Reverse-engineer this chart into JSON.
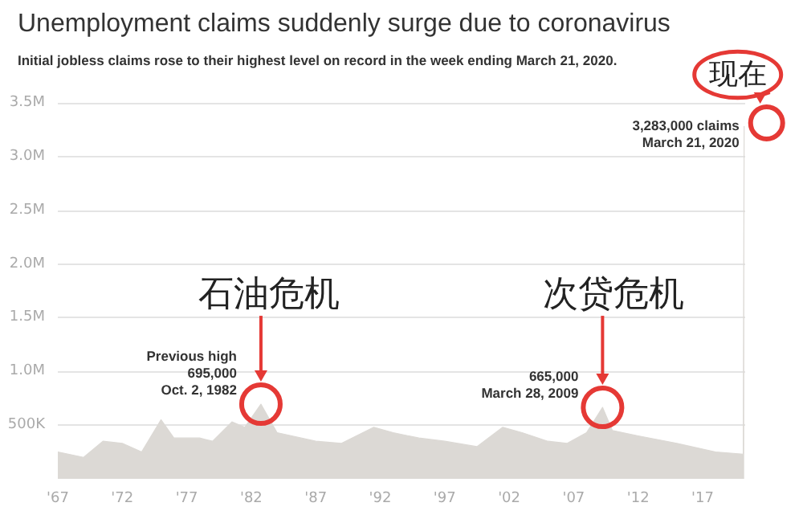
{
  "chart_data": {
    "type": "area",
    "title": "Unemployment claims suddenly surge due to coronavirus",
    "subtitle": "Initial jobless claims rose to their highest level on record in the week ending March 21, 2020.",
    "x": [
      1967,
      1969,
      1970.5,
      1972,
      1973.5,
      1975,
      1976,
      1978,
      1979,
      1980.5,
      1981.5,
      1982.75,
      1984,
      1987,
      1989,
      1991.5,
      1993,
      1995,
      1997,
      1999.5,
      2001.5,
      2003,
      2005,
      2006.5,
      2008,
      2009.24,
      2010,
      2012,
      2015,
      2018,
      2020.15,
      2020.22
    ],
    "values": [
      250000,
      200000,
      350000,
      330000,
      250000,
      550000,
      380000,
      380000,
      350000,
      530000,
      480000,
      695000,
      430000,
      350000,
      330000,
      480000,
      430000,
      380000,
      350000,
      300000,
      480000,
      430000,
      350000,
      330000,
      430000,
      665000,
      450000,
      400000,
      330000,
      250000,
      230000,
      3283000
    ],
    "color": "#dcd9d5",
    "xlim": [
      1967,
      2020.3
    ],
    "xticks": [
      {
        "value": 1967,
        "label": "'67"
      },
      {
        "value": 1972,
        "label": "'72"
      },
      {
        "value": 1977,
        "label": "'77"
      },
      {
        "value": 1982,
        "label": "'82"
      },
      {
        "value": 1987,
        "label": "'87"
      },
      {
        "value": 1992,
        "label": "'92"
      },
      {
        "value": 1997,
        "label": "'97"
      },
      {
        "value": 2002,
        "label": "'02"
      },
      {
        "value": 2007,
        "label": "'07"
      },
      {
        "value": 2012,
        "label": "'12"
      },
      {
        "value": 2017,
        "label": "'17"
      }
    ],
    "ylim": [
      0,
      3500000
    ],
    "yticks": [
      {
        "value": 500000,
        "label": "500K"
      },
      {
        "value": 1000000,
        "label": "1.0M"
      },
      {
        "value": 1500000,
        "label": "1.5M"
      },
      {
        "value": 2000000,
        "label": "2.0M"
      },
      {
        "value": 2500000,
        "label": "2.5M"
      },
      {
        "value": 3000000,
        "label": "3.0M"
      },
      {
        "value": 3500000,
        "label": "3.5M"
      }
    ],
    "grid": "y",
    "annotations": [
      {
        "text": "Previous high\n695,000\nOct. 2, 1982",
        "x": 1982.75,
        "y": 695000
      },
      {
        "text": "665,000\nMarch 28, 2009",
        "x": 2009.24,
        "y": 665000
      },
      {
        "text": "3,283,000 claims\nMarch 21, 2020",
        "x": 2020.22,
        "y": 3283000
      },
      {
        "text": "石油危机",
        "x": 1982.75,
        "y": 695000
      },
      {
        "text": "次贷危机",
        "x": 2009.24,
        "y": 665000
      },
      {
        "text": "现在",
        "x": 2020.22,
        "y": 3283000
      }
    ]
  }
}
